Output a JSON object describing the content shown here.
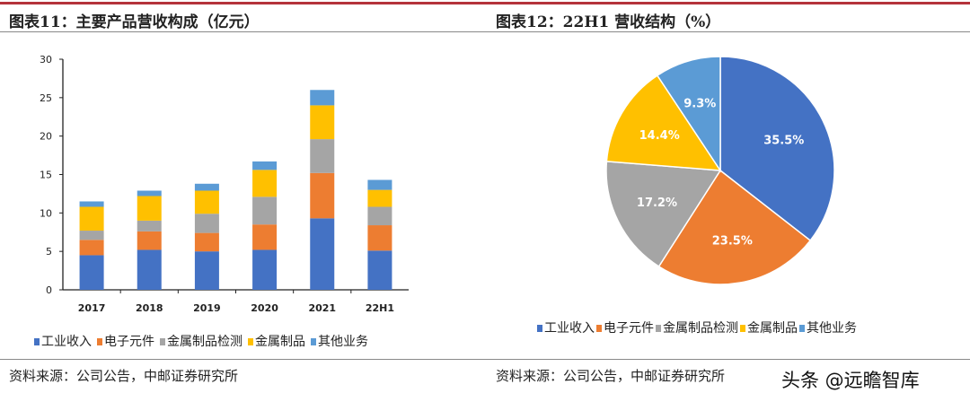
{
  "left": {
    "title": "图表11：主要产品营收构成（亿元）",
    "source": "资料来源：公司公告，中邮证券研究所"
  },
  "right": {
    "title": "图表12：22H1 营收结构（%）",
    "source": "资料来源：公司公告，中邮证券研究所"
  },
  "watermark": "头条 @远瞻智库",
  "colors": {
    "accent_red": "#b5333b"
  },
  "chart_data": [
    {
      "type": "bar",
      "stacked": true,
      "categories": [
        "2017",
        "2018",
        "2019",
        "2020",
        "2021",
        "22H1"
      ],
      "ylim": [
        0,
        30
      ],
      "yticks": [
        0,
        5,
        10,
        15,
        20,
        25,
        30
      ],
      "grid": false,
      "legend": "bottom",
      "series": [
        {
          "name": "工业收入",
          "color": "#4472c4",
          "values": [
            4.5,
            5.2,
            5.0,
            5.2,
            9.3,
            5.1
          ]
        },
        {
          "name": "电子元件",
          "color": "#ed7d31",
          "values": [
            2.0,
            2.4,
            2.4,
            3.3,
            5.9,
            3.3
          ]
        },
        {
          "name": "金属制品检测",
          "color": "#a5a5a5",
          "values": [
            1.2,
            1.4,
            2.5,
            3.6,
            4.4,
            2.4
          ]
        },
        {
          "name": "金属制品",
          "color": "#ffc000",
          "values": [
            3.1,
            3.2,
            3.0,
            3.5,
            4.4,
            2.2
          ]
        },
        {
          "name": "其他业务",
          "color": "#5b9bd5",
          "values": [
            0.7,
            0.7,
            0.9,
            1.1,
            2.0,
            1.3
          ]
        }
      ]
    },
    {
      "type": "pie",
      "legend": "bottom",
      "slices": [
        {
          "name": "工业收入",
          "value": 35.5,
          "label": "35.5%",
          "color": "#4472c4"
        },
        {
          "name": "电子元件",
          "value": 23.5,
          "label": "23.5%",
          "color": "#ed7d31"
        },
        {
          "name": "金属制品检测",
          "value": 17.2,
          "label": "17.2%",
          "color": "#a5a5a5"
        },
        {
          "name": "金属制品",
          "value": 14.4,
          "label": "14.4%",
          "color": "#ffc000"
        },
        {
          "name": "其他业务",
          "value": 9.3,
          "label": "9.3%",
          "color": "#5b9bd5"
        }
      ]
    }
  ]
}
